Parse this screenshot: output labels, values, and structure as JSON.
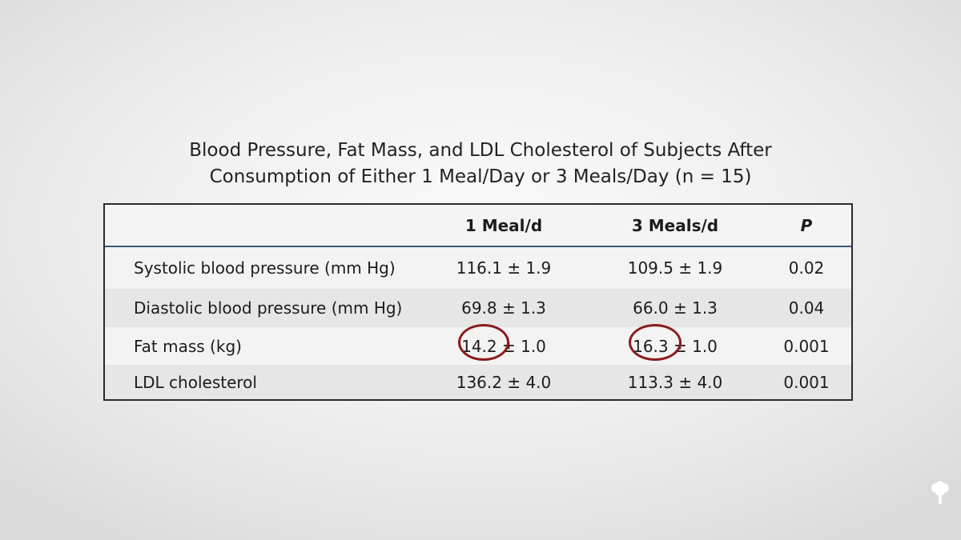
{
  "title": {
    "line1": "Blood Pressure, Fat Mass, and LDL Cholesterol of Subjects After",
    "line2": "Consumption of Either 1 Meal/Day or 3 Meals/Day (n = 15)"
  },
  "table": {
    "headers": [
      "",
      "1 Meal/d",
      "3 Meals/d",
      "P"
    ],
    "rows": [
      {
        "label": "Systolic blood pressure (mm Hg)",
        "one_meal": "116.1 ± 1.9",
        "three_meals": "109.5 ± 1.9",
        "p": "0.02"
      },
      {
        "label": "Diastolic blood pressure (mm Hg)",
        "one_meal": "69.8 ± 1.3",
        "three_meals": "66.0 ± 1.3",
        "p": "0.04"
      },
      {
        "label": "Fat mass (kg)",
        "one_meal": "14.2 ± 1.0",
        "three_meals": "16.3 ± 1.0",
        "p": "0.001"
      },
      {
        "label": "LDL cholesterol",
        "one_meal": "136.2 ± 4.0",
        "three_meals": "113.3 ± 4.0",
        "p": "0.001"
      }
    ]
  },
  "annotations": {
    "highlight_color": "#8b1a1a",
    "highlighted_values": [
      "14.2",
      "16.3"
    ]
  },
  "logo": {
    "icon": "tree-icon"
  }
}
